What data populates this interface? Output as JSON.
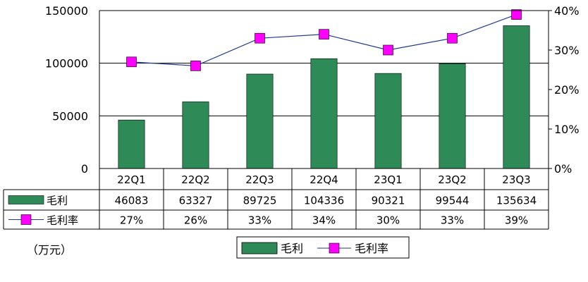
{
  "chart_data": {
    "type": "bar",
    "categories": [
      "22Q1",
      "22Q2",
      "22Q3",
      "22Q4",
      "23Q1",
      "23Q2",
      "23Q3"
    ],
    "series": [
      {
        "name": "毛利",
        "type": "bar",
        "axis": "left",
        "values": [
          46083,
          63327,
          89725,
          104336,
          90321,
          99544,
          135634
        ]
      },
      {
        "name": "毛利率",
        "type": "line",
        "axis": "right",
        "values": [
          27,
          26,
          33,
          34,
          30,
          33,
          39
        ]
      }
    ],
    "table_labels": {
      "bar": [
        "46083",
        "63327",
        "89725",
        "104336",
        "90321",
        "99544",
        "135634"
      ],
      "line": [
        "27%",
        "26%",
        "33%",
        "34%",
        "30%",
        "33%",
        "39%"
      ]
    },
    "ylim_left": [
      0,
      150000
    ],
    "ylim_right": [
      0,
      40
    ],
    "y_ticks_left": [
      "0",
      "50000",
      "100000",
      "150000"
    ],
    "y_ticks_right": [
      "0%",
      "10%",
      "20%",
      "30%",
      "40%"
    ],
    "unit_label": "（万元）",
    "grid": true,
    "legend": "bottom",
    "colors": {
      "bar": "#2e8b57",
      "line": "#1f3a93",
      "marker": "#ff00ff",
      "grid": "#000000"
    }
  }
}
